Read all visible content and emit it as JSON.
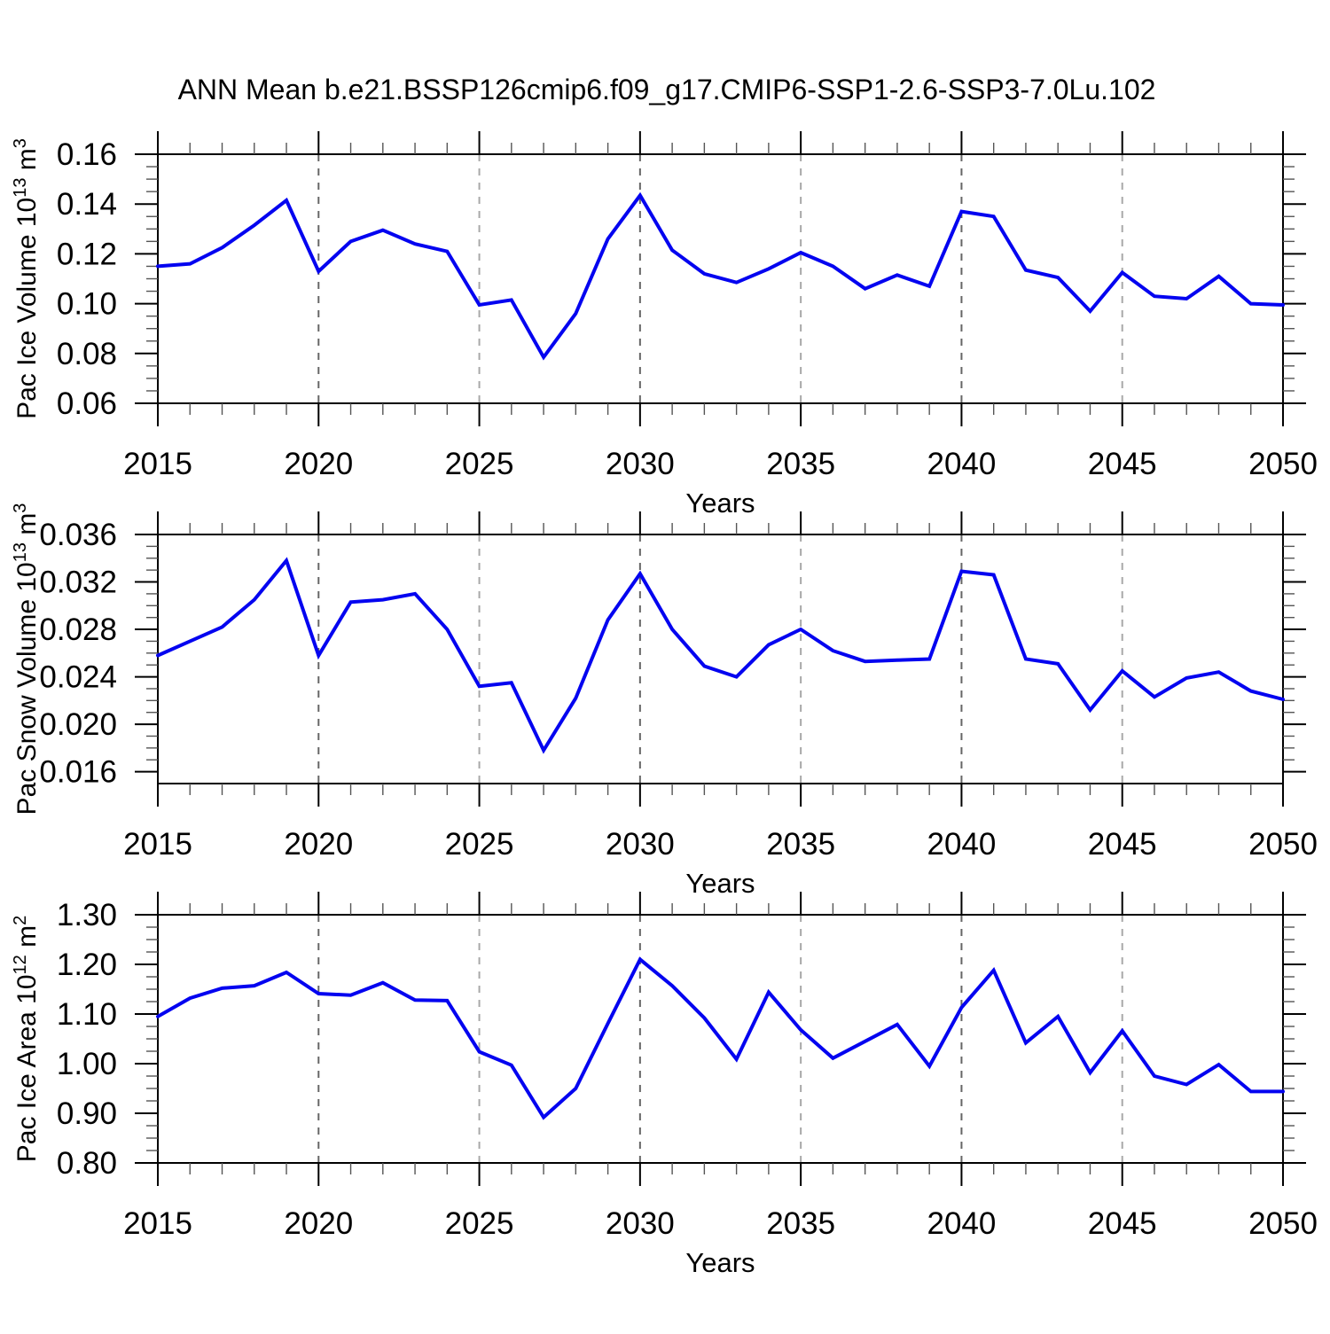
{
  "title": "ANN Mean b.e21.BSSP126cmip6.f09_g17.CMIP6-SSP1-2.6-SSP3-7.0Lu.102",
  "colors": {
    "series_line": "#0404f0",
    "axis": "#000000",
    "grid_dark": "#666666",
    "grid_light": "#a8a8a8",
    "minor_tick": "#555555"
  },
  "chart_data": [
    {
      "type": "line",
      "name": "pac-ice-volume",
      "xlabel": "Years",
      "ylabel": "Pac Ice Volume 10^13 m^3",
      "ylabel_parts": {
        "prefix": "Pac Ice Volume 10",
        "sup1": "13",
        "mid": " m",
        "sup2": "3"
      },
      "xlim": [
        2015,
        2050
      ],
      "ylim": [
        0.06,
        0.16
      ],
      "xticks": [
        2015,
        2020,
        2025,
        2030,
        2035,
        2040,
        2045,
        2050
      ],
      "xtick_labels": [
        "2015",
        "2020",
        "2025",
        "2030",
        "2035",
        "2040",
        "2045",
        "2050"
      ],
      "xminor_step": 1,
      "yticks": [
        0.06,
        0.08,
        0.1,
        0.12,
        0.14,
        0.16
      ],
      "ytick_labels": [
        "0.06",
        "0.08",
        "0.10",
        "0.12",
        "0.14",
        "0.16"
      ],
      "yminor_step": 0.005,
      "gridlines_x": [
        2020,
        2025,
        2030,
        2035,
        2040,
        2045
      ],
      "grid": "vertical-dashed",
      "legend": "none",
      "x": [
        2015,
        2016,
        2017,
        2018,
        2019,
        2020,
        2021,
        2022,
        2023,
        2024,
        2025,
        2026,
        2027,
        2028,
        2029,
        2030,
        2031,
        2032,
        2033,
        2034,
        2035,
        2036,
        2037,
        2038,
        2039,
        2040,
        2041,
        2042,
        2043,
        2044,
        2045,
        2046,
        2047,
        2048,
        2049,
        2050
      ],
      "values": [
        0.115,
        0.116,
        0.1225,
        0.1315,
        0.1415,
        0.113,
        0.125,
        0.1295,
        0.124,
        0.121,
        0.0995,
        0.1015,
        0.0785,
        0.096,
        0.126,
        0.1435,
        0.1215,
        0.112,
        0.1085,
        0.114,
        0.1205,
        0.115,
        0.106,
        0.1115,
        0.107,
        0.137,
        0.135,
        0.1135,
        0.1105,
        0.097,
        0.1125,
        0.103,
        0.102,
        0.111,
        0.1,
        0.0995
      ]
    },
    {
      "type": "line",
      "name": "pac-snow-volume",
      "xlabel": "Years",
      "ylabel": "Pac Snow Volume 10^13 m^3",
      "ylabel_parts": {
        "prefix": "Pac Snow Volume 10",
        "sup1": "13",
        "mid": " m",
        "sup2": "3"
      },
      "xlim": [
        2015,
        2050
      ],
      "ylim": [
        0.015,
        0.036
      ],
      "xticks": [
        2015,
        2020,
        2025,
        2030,
        2035,
        2040,
        2045,
        2050
      ],
      "xtick_labels": [
        "2015",
        "2020",
        "2025",
        "2030",
        "2035",
        "2040",
        "2045",
        "2050"
      ],
      "xminor_step": 1,
      "yticks": [
        0.016,
        0.02,
        0.024,
        0.028,
        0.032,
        0.036
      ],
      "ytick_labels": [
        "0.016",
        "0.020",
        "0.024",
        "0.028",
        "0.032",
        "0.036"
      ],
      "yminor_step": 0.001,
      "gridlines_x": [
        2020,
        2025,
        2030,
        2035,
        2040,
        2045
      ],
      "grid": "vertical-dashed",
      "legend": "none",
      "x": [
        2015,
        2016,
        2017,
        2018,
        2019,
        2020,
        2021,
        2022,
        2023,
        2024,
        2025,
        2026,
        2027,
        2028,
        2029,
        2030,
        2031,
        2032,
        2033,
        2034,
        2035,
        2036,
        2037,
        2038,
        2039,
        2040,
        2041,
        2042,
        2043,
        2044,
        2045,
        2046,
        2047,
        2048,
        2049,
        2050
      ],
      "values": [
        0.0258,
        0.027,
        0.0282,
        0.0305,
        0.0338,
        0.0258,
        0.0303,
        0.0305,
        0.031,
        0.028,
        0.0232,
        0.0235,
        0.0178,
        0.0222,
        0.0288,
        0.0327,
        0.028,
        0.0249,
        0.024,
        0.0267,
        0.028,
        0.0262,
        0.0253,
        0.0254,
        0.0255,
        0.0329,
        0.0326,
        0.0255,
        0.0251,
        0.0212,
        0.0245,
        0.0223,
        0.0239,
        0.0244,
        0.0228,
        0.0221
      ]
    },
    {
      "type": "line",
      "name": "pac-ice-area",
      "xlabel": "Years",
      "ylabel": "Pac Ice Area 10^12 m^2",
      "ylabel_parts": {
        "prefix": "Pac Ice Area 10",
        "sup1": "12",
        "mid": " m",
        "sup2": "2"
      },
      "xlim": [
        2015,
        2050
      ],
      "ylim": [
        0.8,
        1.3
      ],
      "xticks": [
        2015,
        2020,
        2025,
        2030,
        2035,
        2040,
        2045,
        2050
      ],
      "xtick_labels": [
        "2015",
        "2020",
        "2025",
        "2030",
        "2035",
        "2040",
        "2045",
        "2050"
      ],
      "xminor_step": 1,
      "yticks": [
        0.8,
        0.9,
        1.0,
        1.1,
        1.2,
        1.3
      ],
      "ytick_labels": [
        "0.80",
        "0.90",
        "1.00",
        "1.10",
        "1.20",
        "1.30"
      ],
      "yminor_step": 0.025,
      "gridlines_x": [
        2020,
        2025,
        2030,
        2035,
        2040,
        2045
      ],
      "grid": "vertical-dashed",
      "legend": "none",
      "x": [
        2015,
        2016,
        2017,
        2018,
        2019,
        2020,
        2021,
        2022,
        2023,
        2024,
        2025,
        2026,
        2027,
        2028,
        2029,
        2030,
        2031,
        2032,
        2033,
        2034,
        2035,
        2036,
        2037,
        2038,
        2039,
        2040,
        2041,
        2042,
        2043,
        2044,
        2045,
        2046,
        2047,
        2048,
        2049,
        2050
      ],
      "values": [
        1.095,
        1.132,
        1.152,
        1.157,
        1.184,
        1.141,
        1.138,
        1.163,
        1.128,
        1.127,
        1.024,
        0.997,
        0.892,
        0.95,
        1.081,
        1.21,
        1.157,
        1.092,
        1.009,
        1.144,
        1.068,
        1.011,
        1.045,
        1.079,
        0.995,
        1.113,
        1.188,
        1.042,
        1.095,
        0.982,
        1.066,
        0.975,
        0.958,
        0.998,
        0.944,
        0.944
      ]
    }
  ]
}
